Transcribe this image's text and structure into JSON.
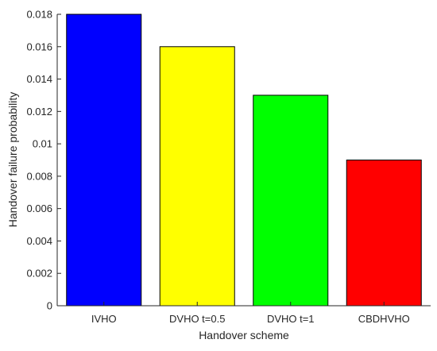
{
  "chart_data": {
    "type": "bar",
    "title": "",
    "xlabel": "Handover scheme",
    "ylabel": "Handover failure probability",
    "categories": [
      "IVHO",
      "DVHO t=0.5",
      "DVHO t=1",
      "CBDHVHO"
    ],
    "values": [
      0.018,
      0.016,
      0.013,
      0.009
    ],
    "bar_colors": [
      "#0000ff",
      "#ffff00",
      "#00ff00",
      "#ff0000"
    ],
    "ylim": [
      0,
      0.018
    ],
    "yticks": [
      "0",
      "0.002",
      "0.004",
      "0.006",
      "0.008",
      "0.01",
      "0.012",
      "0.014",
      "0.016",
      "0.018"
    ],
    "grid": false,
    "legend": "none"
  }
}
